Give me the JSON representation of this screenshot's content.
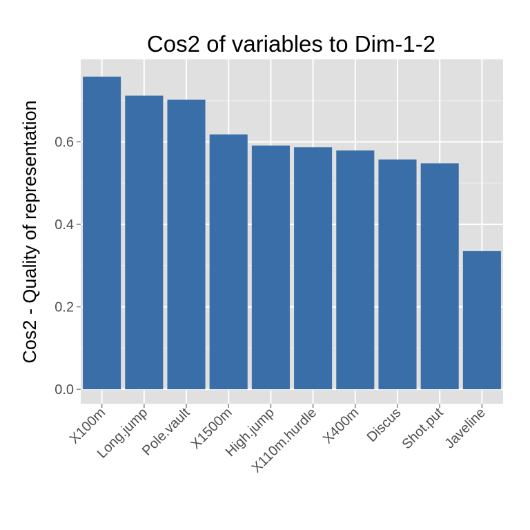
{
  "chart_data": {
    "type": "bar",
    "title": "Cos2 of variables to Dim-1-2",
    "xlabel": "",
    "ylabel": "Cos2 - Quality of representation",
    "categories": [
      "X100m",
      "Long.jump",
      "Pole.vault",
      "X1500m",
      "High.jump",
      "X110m.hurdle",
      "X400m",
      "Discus",
      "Shot.put",
      "Javeline"
    ],
    "values": [
      0.758,
      0.712,
      0.702,
      0.618,
      0.591,
      0.587,
      0.579,
      0.557,
      0.548,
      0.335
    ],
    "ylim": [
      -0.035,
      0.8
    ],
    "yticks": [
      0.0,
      0.2,
      0.4,
      0.6
    ],
    "ytick_labels": [
      "0.0",
      "0.2",
      "0.4",
      "0.6"
    ],
    "grid": true,
    "colors": {
      "bar": "#3a6ea8",
      "panel": "#e0e0e0",
      "grid_major": "#ffffff",
      "grid_minor": "#f0f0f0",
      "tick_text": "#4d4d4d"
    }
  }
}
